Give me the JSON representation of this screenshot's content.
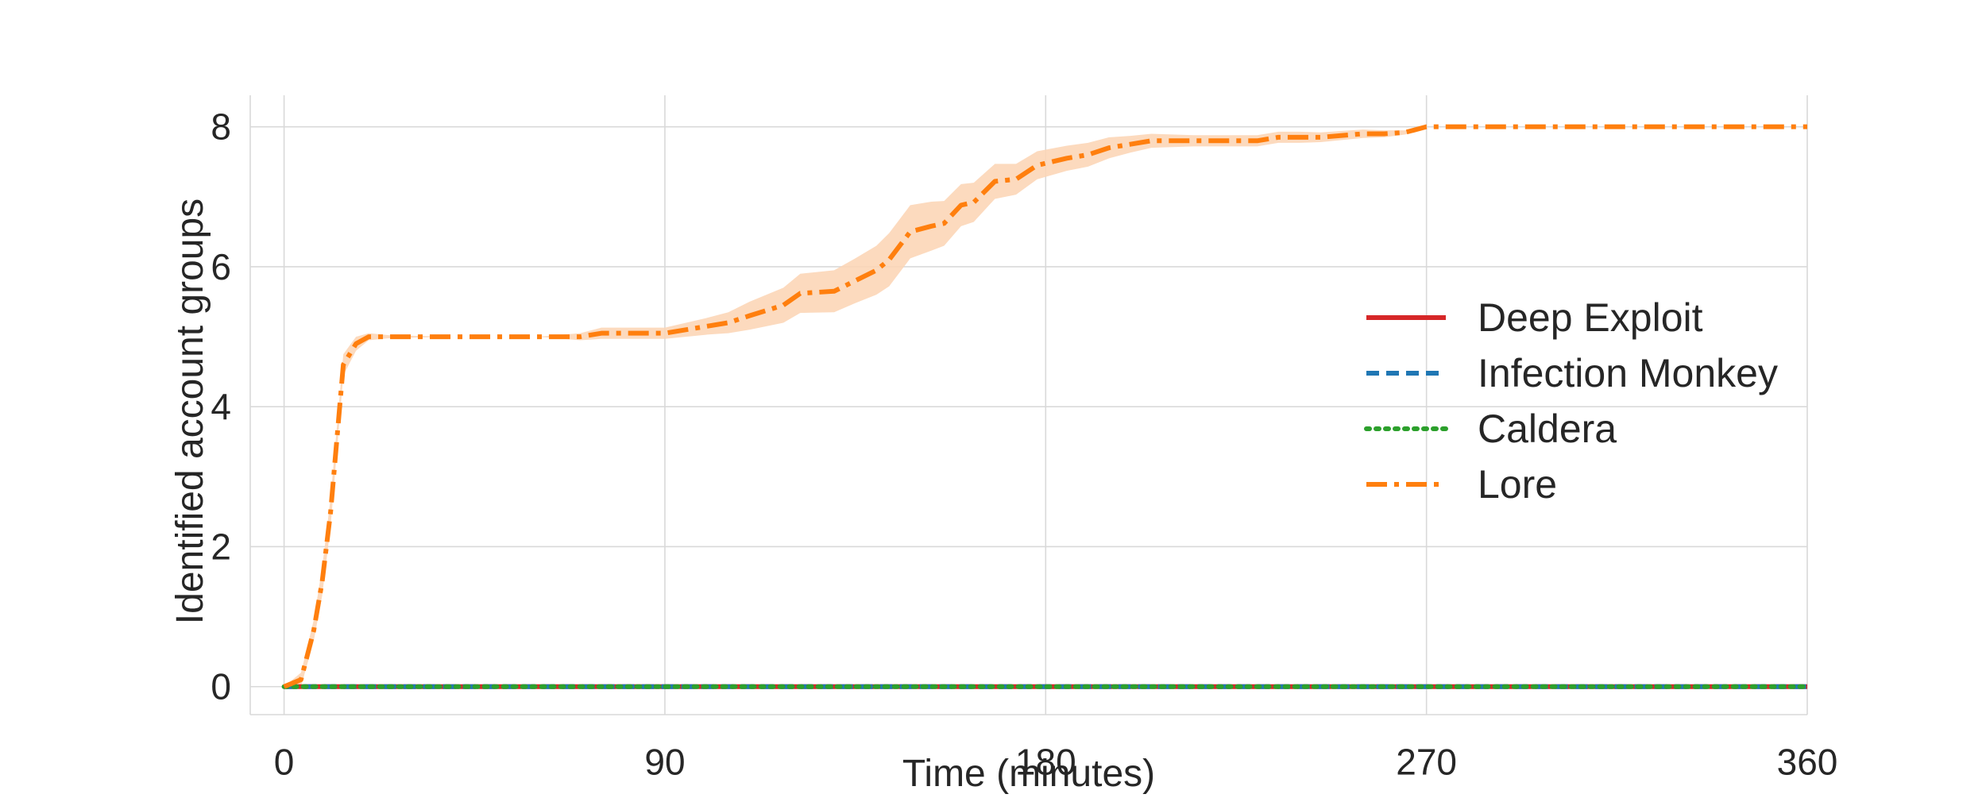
{
  "chart_data": {
    "type": "line",
    "xlabel": "Time (minutes)",
    "ylabel": "Identified account groups",
    "xlim": [
      -8,
      360
    ],
    "ylim": [
      -0.4,
      8.45
    ],
    "xticks": [
      0,
      90,
      180,
      270,
      360
    ],
    "yticks": [
      0,
      2,
      4,
      6,
      8
    ],
    "grid": true,
    "legend_position": "center-right",
    "series": [
      {
        "name": "Deep Exploit",
        "color": "#d62728",
        "style": "solid",
        "x": [
          0,
          360
        ],
        "y": [
          0,
          0
        ]
      },
      {
        "name": "Infection Monkey",
        "color": "#1f77b4",
        "style": "dashed",
        "x": [
          0,
          360
        ],
        "y": [
          0,
          0
        ]
      },
      {
        "name": "Caldera",
        "color": "#2ca02c",
        "style": "dotted",
        "x": [
          0,
          360
        ],
        "y": [
          0,
          0
        ]
      },
      {
        "name": "Lore",
        "color": "#ff7f0e",
        "style": "dashdot",
        "band_color": "#fbd4b3",
        "x": [
          0,
          4,
          7,
          9,
          11,
          14,
          17,
          20,
          25,
          40,
          60,
          70,
          75,
          80,
          90,
          100,
          105,
          110,
          118,
          122,
          130,
          135,
          140,
          143,
          148,
          153,
          156,
          160,
          163,
          168,
          173,
          178,
          185,
          190,
          195,
          200,
          205,
          215,
          225,
          230,
          235,
          240,
          245,
          255,
          260,
          265,
          270,
          300,
          330,
          360
        ],
        "y": [
          0,
          0.1,
          0.8,
          1.5,
          2.5,
          4.6,
          4.9,
          5.0,
          5.0,
          5.0,
          5.0,
          5.0,
          5.05,
          5.05,
          5.05,
          5.15,
          5.2,
          5.3,
          5.45,
          5.62,
          5.65,
          5.8,
          5.95,
          6.1,
          6.5,
          6.58,
          6.62,
          6.88,
          6.92,
          7.22,
          7.25,
          7.45,
          7.55,
          7.6,
          7.7,
          7.75,
          7.8,
          7.8,
          7.8,
          7.8,
          7.85,
          7.85,
          7.85,
          7.9,
          7.9,
          7.92,
          8.0,
          8.0,
          8.0,
          8.0
        ],
        "band": [
          0,
          0.1,
          0.15,
          0.2,
          0.2,
          0.15,
          0.1,
          0.05,
          0.02,
          0.0,
          0.0,
          0.05,
          0.08,
          0.08,
          0.08,
          0.12,
          0.15,
          0.2,
          0.25,
          0.28,
          0.3,
          0.32,
          0.35,
          0.38,
          0.38,
          0.35,
          0.32,
          0.3,
          0.28,
          0.25,
          0.22,
          0.2,
          0.18,
          0.17,
          0.15,
          0.12,
          0.1,
          0.08,
          0.08,
          0.08,
          0.08,
          0.08,
          0.07,
          0.06,
          0.05,
          0.03,
          0.0,
          0.0,
          0.0,
          0.0
        ]
      }
    ]
  }
}
